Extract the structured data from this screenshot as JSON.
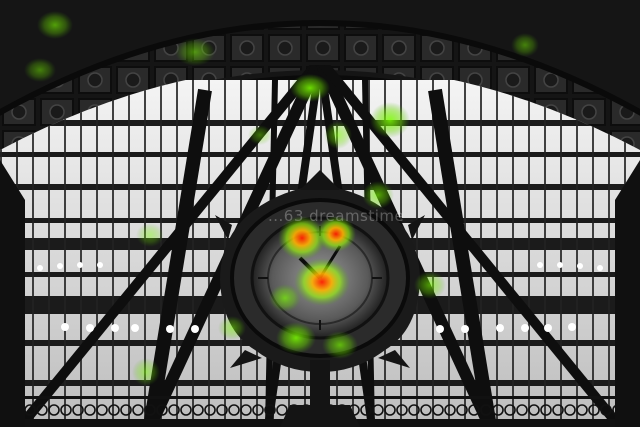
{
  "image": {
    "subject": "grand station hall",
    "watermark_text": "...63 dreamstime",
    "overlay": "fixation heatmap"
  },
  "palette": {
    "window_light": "#e8e8e8",
    "iron": "#141414",
    "ceiling_dark": "#1c1c1c",
    "heat_low": "#7cff00",
    "heat_mid": "#ffd200",
    "heat_high": "#ff2a00"
  },
  "heatmap": {
    "intensity_levels": [
      "low",
      "mid",
      "high"
    ]
  }
}
